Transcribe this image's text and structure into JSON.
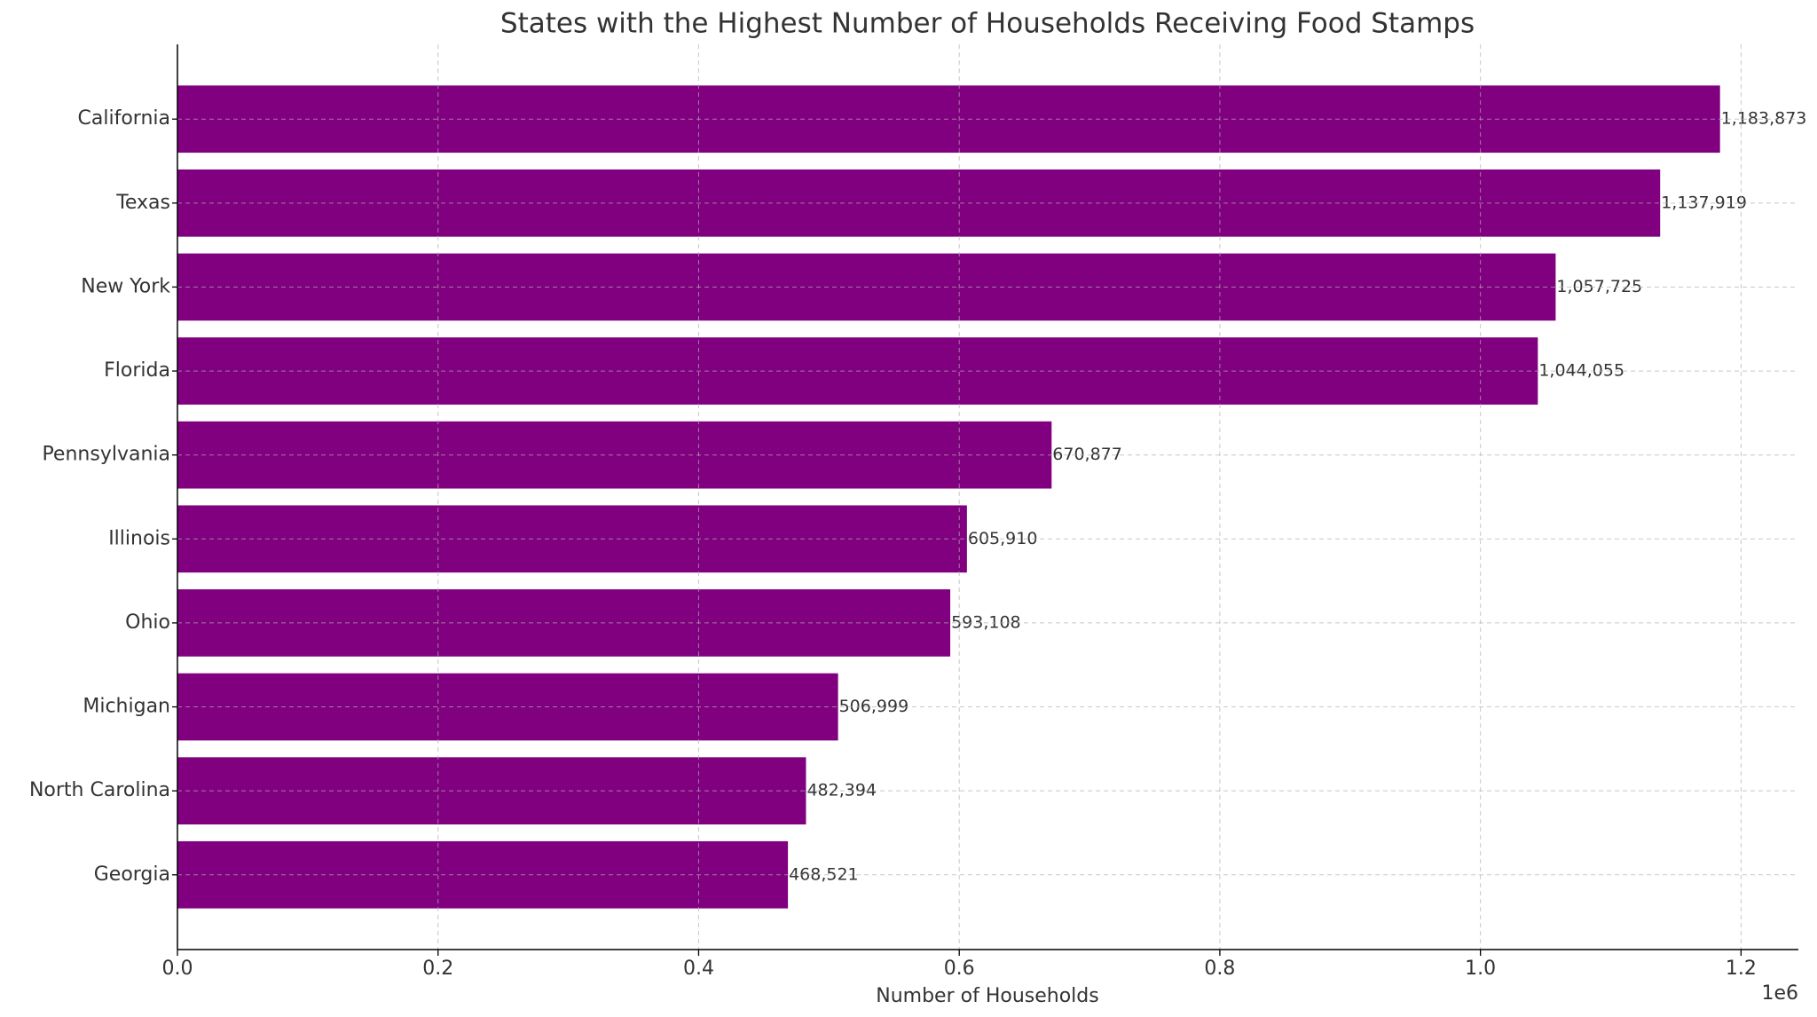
{
  "chart_data": {
    "type": "barh",
    "title": "States with the Highest Number of Households Receiving Food Stamps",
    "xlabel": "Number of Households",
    "x_offset_label": "1e6",
    "categories": [
      "California",
      "Texas",
      "New York",
      "Florida",
      "Pennsylvania",
      "Illinois",
      "Ohio",
      "Michigan",
      "North Carolina",
      "Georgia"
    ],
    "values": [
      1183873,
      1137919,
      1057725,
      1044055,
      670877,
      605910,
      593108,
      506999,
      482394,
      468521
    ],
    "value_labels": [
      "1,183,873",
      "1,137,919",
      "1,057,725",
      "1,044,055",
      "670,877",
      "605,910",
      "593,108",
      "506,999",
      "482,394",
      "468,521"
    ],
    "color": "#800080",
    "xlim": [
      0,
      1244000
    ],
    "xticks": [
      {
        "value": 0,
        "label": "0.0"
      },
      {
        "value": 200000,
        "label": "0.2"
      },
      {
        "value": 400000,
        "label": "0.4"
      },
      {
        "value": 600000,
        "label": "0.6"
      },
      {
        "value": 800000,
        "label": "0.8"
      },
      {
        "value": 1000000,
        "label": "1.0"
      },
      {
        "value": 1200000,
        "label": "1.2"
      }
    ],
    "grid": true
  }
}
